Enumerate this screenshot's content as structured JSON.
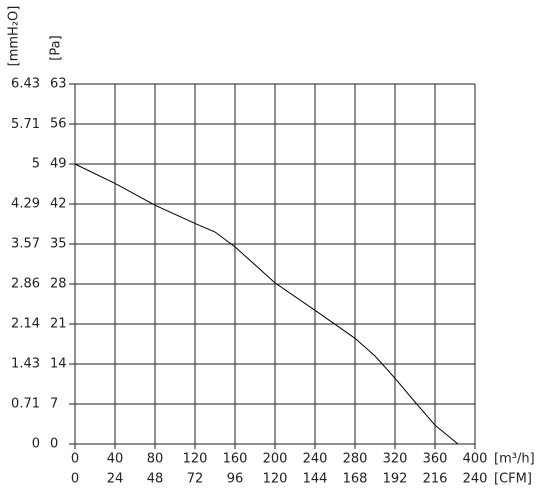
{
  "chart_data": {
    "type": "line",
    "x": [
      0,
      40,
      80,
      120,
      140,
      160,
      200,
      240,
      280,
      300,
      320,
      340,
      360,
      383
    ],
    "series": [
      {
        "color": "#000000",
        "values": [
          49,
          45.6,
          41.8,
          38.6,
          37.1,
          34.5,
          28.2,
          23.4,
          18.5,
          15.4,
          11.5,
          7.35,
          3.3,
          0
        ]
      }
    ],
    "xlim": [
      0,
      400
    ],
    "xticks": [
      0,
      40,
      80,
      120,
      160,
      200,
      240,
      280,
      320,
      360,
      400
    ],
    "xlabel": "[m³/h]",
    "x2lim": [
      0,
      240
    ],
    "x2ticks": [
      0,
      24,
      48,
      72,
      96,
      120,
      144,
      168,
      192,
      216,
      240
    ],
    "x2label": "[CFM]",
    "ylim": [
      0,
      63
    ],
    "yticks": [
      0,
      7,
      14,
      21,
      28,
      35,
      42,
      49,
      56,
      63
    ],
    "ylabel": "[Pa]",
    "y2lim": [
      0,
      6.43
    ],
    "y2ticks": [
      0,
      0.71,
      1.43,
      2.14,
      2.86,
      3.57,
      4.29,
      5.0,
      5.71,
      6.43
    ],
    "y2label": "[mmH₂O]",
    "grid": true
  }
}
